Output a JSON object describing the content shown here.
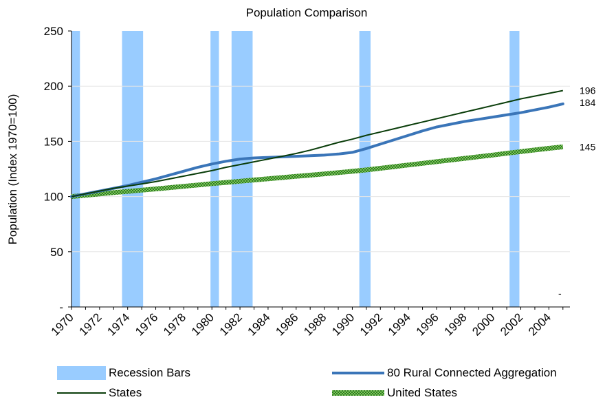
{
  "chart_data": {
    "type": "line",
    "title": "Population Comparison",
    "xlabel": "",
    "ylabel": "Population (Index 1970=100)",
    "ylim": [
      0,
      250
    ],
    "xlim": [
      1970,
      2005.5
    ],
    "yticks": [
      0,
      50,
      100,
      150,
      200,
      250
    ],
    "ytick_labels": [
      "-",
      "50",
      "100",
      "150",
      "200",
      "250"
    ],
    "xticks": [
      1970,
      1972,
      1974,
      1976,
      1978,
      1980,
      1982,
      1984,
      1986,
      1988,
      1990,
      1992,
      1994,
      1996,
      1998,
      2000,
      2002,
      2004
    ],
    "xtick_labels": [
      "1970",
      "1972",
      "1974",
      "1976",
      "1978",
      "1980",
      "1982",
      "1984",
      "1986",
      "1988",
      "1990",
      "1992",
      "1994",
      "1996",
      "1998",
      "2000",
      "2002",
      "2004"
    ],
    "grid": "horizontal",
    "recessions": [
      {
        "start": 1970.0,
        "end": 1970.6
      },
      {
        "start": 1973.6,
        "end": 1975.1
      },
      {
        "start": 1979.9,
        "end": 1980.5
      },
      {
        "start": 1981.4,
        "end": 1982.9
      },
      {
        "start": 1990.5,
        "end": 1991.3
      },
      {
        "start": 2001.2,
        "end": 2001.9
      }
    ],
    "series": [
      {
        "name": "80 Rural Connected Aggregation",
        "color": "#3a75b8",
        "x": [
          1970,
          1971,
          1972,
          1973,
          1974,
          1975,
          1976,
          1977,
          1978,
          1979,
          1980,
          1981,
          1982,
          1983,
          1984,
          1985,
          1986,
          1987,
          1988,
          1989,
          1990,
          1991,
          1992,
          1993,
          1994,
          1995,
          1996,
          1997,
          1998,
          1999,
          2000,
          2001,
          2002,
          2003,
          2004,
          2005
        ],
        "values": [
          100,
          102.5,
          105,
          107.5,
          110,
          113,
          116,
          119.5,
          123,
          126.5,
          129.5,
          132,
          134,
          135,
          135.5,
          136,
          136.5,
          137,
          137.5,
          138.5,
          140,
          143.5,
          147.5,
          151.5,
          155.5,
          159.5,
          163,
          165.5,
          168,
          170,
          172,
          174,
          176,
          178.5,
          181,
          184
        ]
      },
      {
        "name": "States",
        "color": "#0a3d0a",
        "x": [
          1970,
          1971,
          1972,
          1973,
          1974,
          1975,
          1976,
          1977,
          1978,
          1979,
          1980,
          1981,
          1982,
          1983,
          1984,
          1985,
          1986,
          1987,
          1988,
          1989,
          1990,
          1991,
          1992,
          1993,
          1994,
          1995,
          1996,
          1997,
          1998,
          1999,
          2000,
          2001,
          2002,
          2003,
          2004,
          2005
        ],
        "values": [
          100,
          102.5,
          105,
          107.5,
          109.5,
          111.5,
          113.5,
          116,
          118.5,
          121,
          123.5,
          126.5,
          129,
          131.5,
          134,
          136.5,
          139,
          142,
          145.5,
          149,
          152,
          155.5,
          158.5,
          161.5,
          164.5,
          167.5,
          170.5,
          173.5,
          176.5,
          179.5,
          182.5,
          185.5,
          188.5,
          191,
          193.5,
          196
        ]
      },
      {
        "name": "United States",
        "color": "#5aaa3c",
        "x": [
          1970,
          1971,
          1972,
          1973,
          1974,
          1975,
          1976,
          1977,
          1978,
          1979,
          1980,
          1981,
          1982,
          1983,
          1984,
          1985,
          1986,
          1987,
          1988,
          1989,
          1990,
          1991,
          1992,
          1993,
          1994,
          1995,
          1996,
          1997,
          1998,
          1999,
          2000,
          2001,
          2002,
          2003,
          2004,
          2005
        ],
        "values": [
          100,
          101.2,
          102.4,
          103.6,
          104.7,
          105.8,
          106.9,
          108.1,
          109.3,
          110.5,
          111.7,
          112.8,
          113.9,
          115.0,
          116.1,
          117.2,
          118.3,
          119.4,
          120.5,
          121.7,
          122.9,
          124.1,
          125.6,
          127.1,
          128.6,
          130.1,
          131.6,
          133.1,
          134.6,
          136.1,
          137.6,
          139.2,
          140.7,
          142.2,
          143.7,
          145
        ]
      }
    ],
    "end_labels": [
      {
        "series": 1,
        "text": "196"
      },
      {
        "series": 0,
        "text": "184"
      },
      {
        "series": 2,
        "text": "145"
      }
    ],
    "annotation": "-",
    "legend": {
      "placement": "bottom",
      "entries": [
        "Recession Bars",
        "80 Rural Connected Aggregation",
        "States",
        "United States"
      ],
      "recession_color": "#99ccff"
    }
  }
}
